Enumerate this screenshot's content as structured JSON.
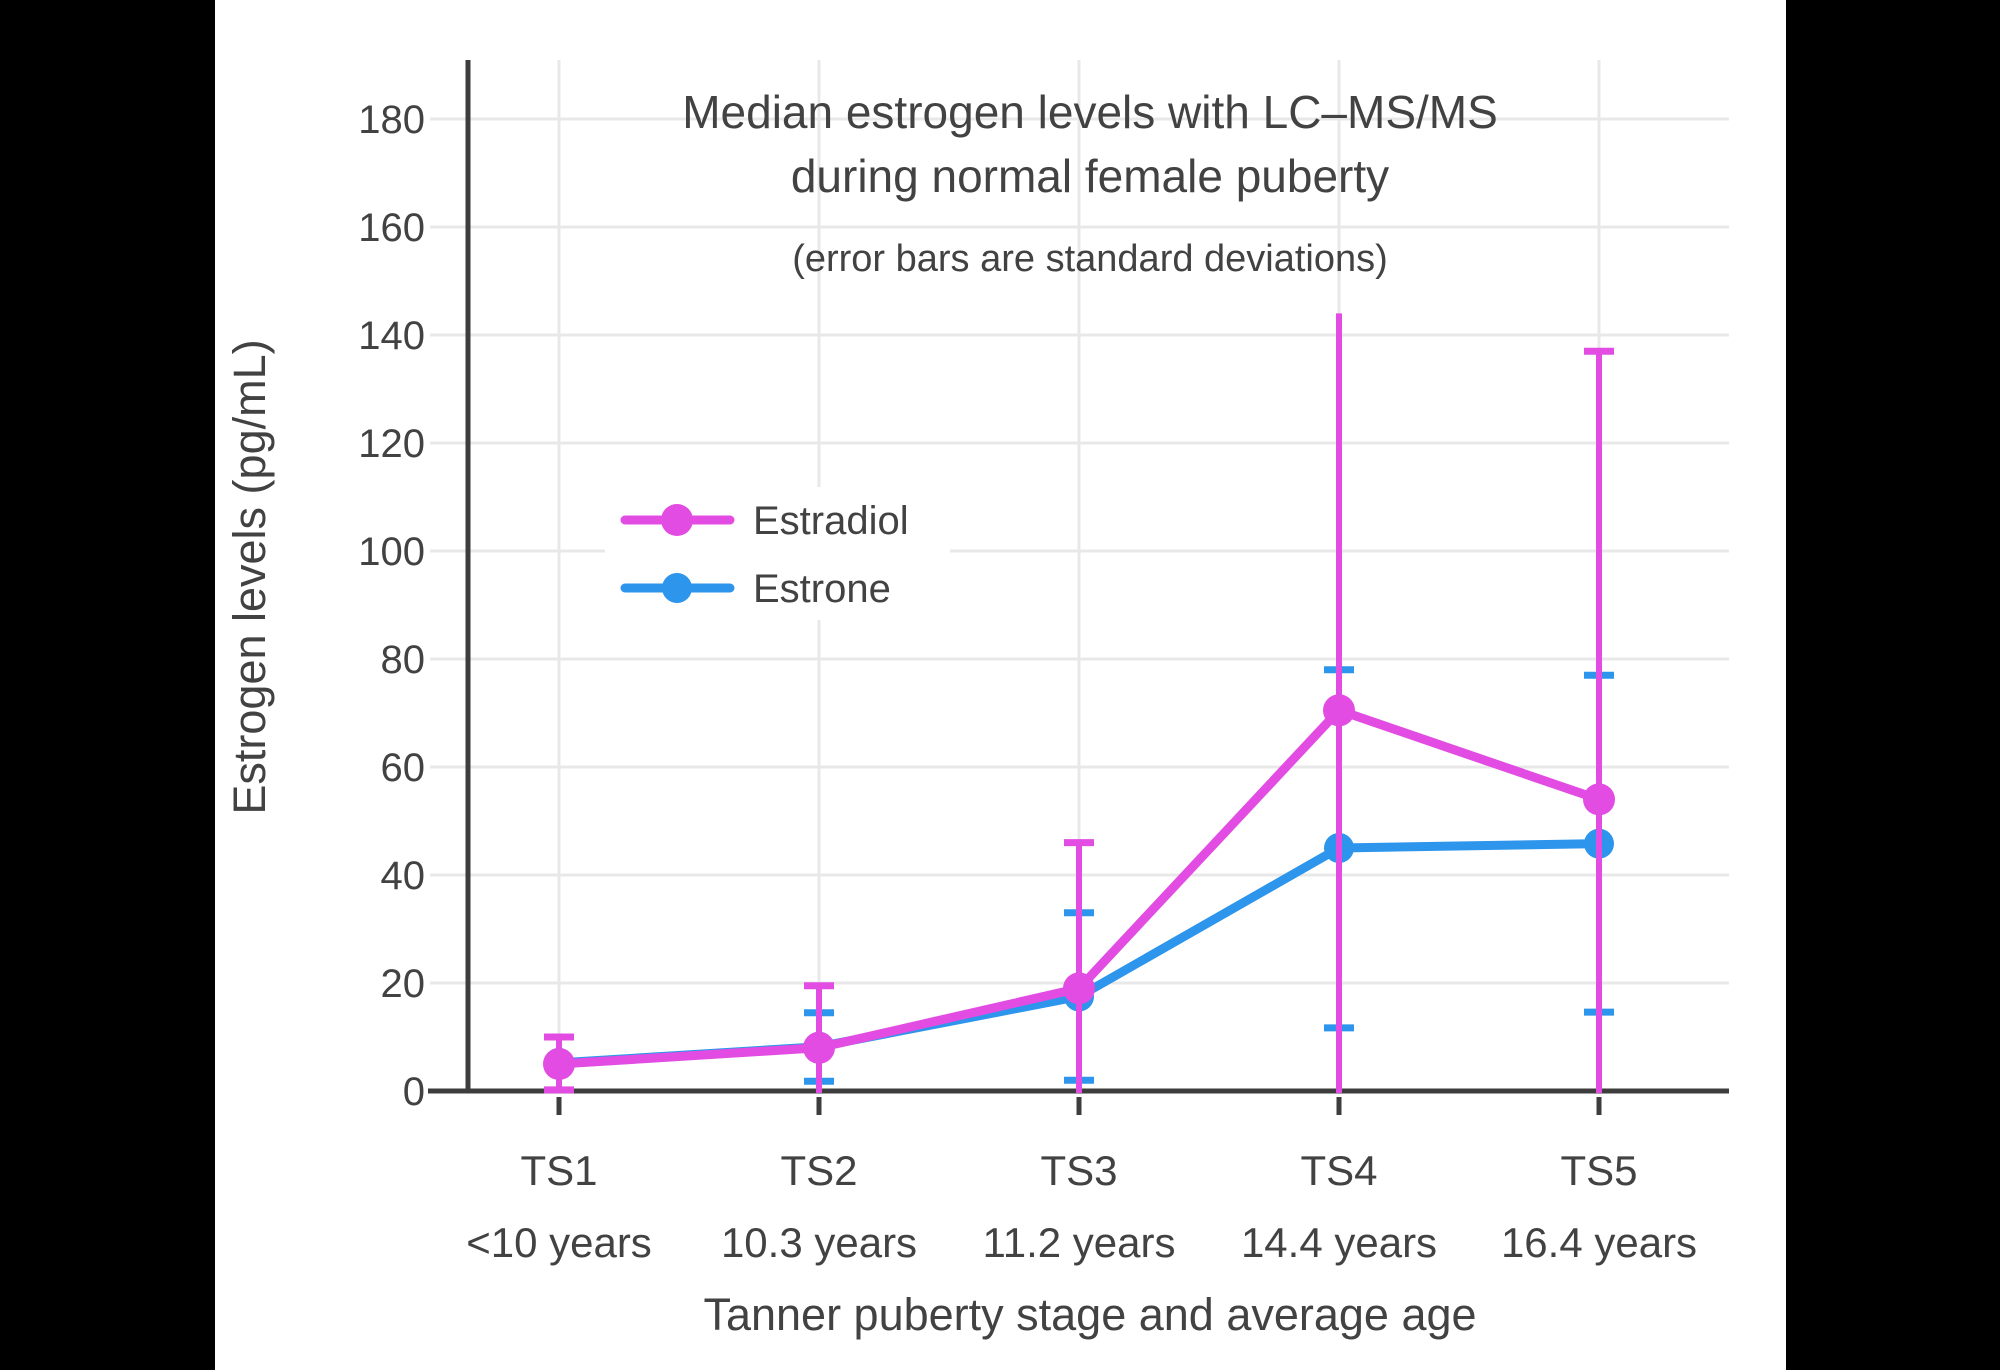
{
  "figure": {
    "title_line1": "Median estrogen levels with LC–MS/MS",
    "title_line2": "during normal female puberty",
    "subtitle": "(error bars are standard deviations)",
    "xlabel": "Tanner puberty stage and average age",
    "ylabel": "Estrogen levels (pg/mL)"
  },
  "colors": {
    "background": "#ffffff",
    "letterbox": "#000000",
    "text": "#424242",
    "axis": "#3d3d3d",
    "grid": "#e8e8e8",
    "estradiol": "#e24ce2",
    "estrone": "#2e95ec"
  },
  "chart_data": {
    "type": "line",
    "title": "Median estrogen levels with LC–MS/MS during normal female puberty",
    "subtitle": "(error bars are standard deviations)",
    "xlabel": "Tanner puberty stage and average age",
    "ylabel": "Estrogen levels (pg/mL)",
    "categories": [
      "TS1",
      "TS2",
      "TS3",
      "TS4",
      "TS5"
    ],
    "category_sublabels": [
      "<10 years",
      "10.3 years",
      "11.2 years",
      "14.4 years",
      "16.4 years"
    ],
    "y_ticks": [
      0,
      20,
      40,
      60,
      80,
      100,
      120,
      140,
      160,
      180
    ],
    "ylim": [
      0,
      190
    ],
    "grid": true,
    "legend_position": "upper-left-inside",
    "units": "pg/mL",
    "error_bar_meaning": "standard deviations",
    "series": [
      {
        "name": "Estradiol",
        "color": "#e24ce2",
        "values": [
          5,
          8,
          19,
          70.5,
          54
        ],
        "err_top": [
          10,
          19.5,
          46,
          144,
          137
        ],
        "err_top_cap": [
          true,
          true,
          true,
          false,
          true
        ],
        "err_bot": [
          0.2,
          null,
          null,
          null,
          null
        ],
        "err_bot_cap": [
          true,
          false,
          false,
          false,
          false
        ]
      },
      {
        "name": "Estrone",
        "color": "#2e95ec",
        "values": [
          5.2,
          8.2,
          17.5,
          45,
          45.8
        ],
        "err_top": [
          null,
          14.5,
          33,
          78,
          77
        ],
        "err_top_cap": [
          false,
          true,
          true,
          true,
          true
        ],
        "err_bot": [
          null,
          1.8,
          2,
          11.7,
          14.6
        ],
        "err_bot_cap": [
          false,
          true,
          true,
          true,
          true
        ]
      }
    ]
  }
}
